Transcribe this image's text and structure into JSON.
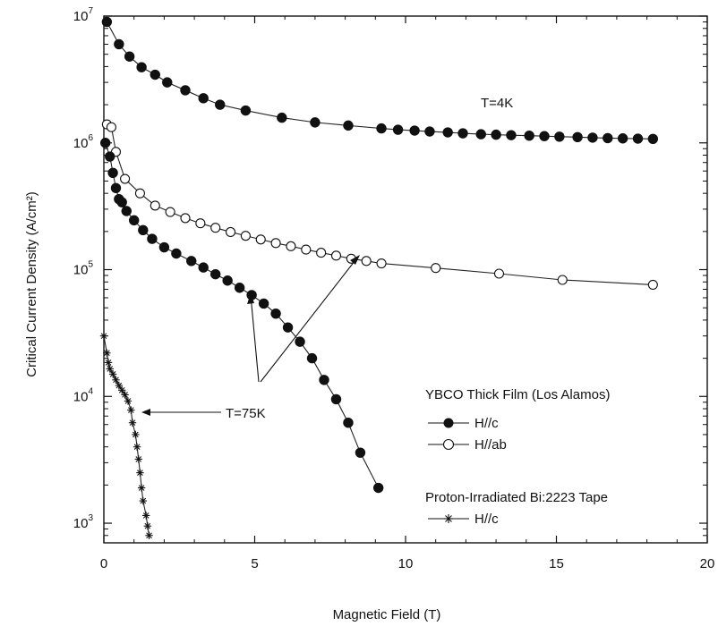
{
  "chart_data": {
    "type": "scatter",
    "xlabel": "Magnetic Field (T)",
    "ylabel": "Critical Current Density (A/cm²)",
    "xlim": [
      0,
      20
    ],
    "ylim": [
      700,
      10000000
    ],
    "y_scale": "log",
    "x_ticks": [
      "0",
      "5",
      "10",
      "15",
      "20"
    ],
    "y_ticks": [
      {
        "value": 1000,
        "exp": "3"
      },
      {
        "value": 10000,
        "exp": "4"
      },
      {
        "value": 100000,
        "exp": "5"
      },
      {
        "value": 1000000,
        "exp": "6"
      },
      {
        "value": 10000000,
        "exp": "7"
      }
    ],
    "y_tick_base": "10",
    "series": [
      {
        "label": "T=4K",
        "marker": "filled-circle",
        "x": [
          0.1,
          0.5,
          0.85,
          1.25,
          1.7,
          2.1,
          2.7,
          3.3,
          3.85,
          4.7,
          5.9,
          7.0,
          8.1,
          9.2,
          9.75,
          10.3,
          10.8,
          11.4,
          11.9,
          12.5,
          13.0,
          13.5,
          14.1,
          14.6,
          15.1,
          15.7,
          16.2,
          16.7,
          17.2,
          17.7,
          18.2
        ],
        "y": [
          9000000,
          6000000,
          4800000,
          3950000,
          3450000,
          3000000,
          2600000,
          2250000,
          2000000,
          1800000,
          1580000,
          1450000,
          1370000,
          1300000,
          1270000,
          1250000,
          1230000,
          1210000,
          1190000,
          1170000,
          1160000,
          1150000,
          1140000,
          1130000,
          1120000,
          1110000,
          1100000,
          1090000,
          1085000,
          1080000,
          1075000
        ]
      },
      {
        "label": "H//ab",
        "marker": "open-circle",
        "x": [
          0.1,
          0.25,
          0.4,
          0.7,
          1.2,
          1.7,
          2.2,
          2.7,
          3.2,
          3.7,
          4.2,
          4.7,
          5.2,
          5.7,
          6.2,
          6.7,
          7.2,
          7.7,
          8.2,
          8.7,
          9.2,
          11.0,
          13.1,
          15.2,
          18.2
        ],
        "y": [
          1400000,
          1330000,
          850000,
          520000,
          400000,
          320000,
          285000,
          255000,
          232000,
          214000,
          198000,
          185000,
          173000,
          162000,
          153000,
          144000,
          136000,
          129000,
          122000,
          117000,
          112000,
          103000,
          93000,
          83000,
          76000
        ]
      },
      {
        "label": "H//c",
        "marker": "filled-circle",
        "x": [
          0.05,
          0.2,
          0.3,
          0.4,
          0.5,
          0.6,
          0.75,
          1.0,
          1.3,
          1.6,
          2.0,
          2.4,
          2.9,
          3.3,
          3.7,
          4.1,
          4.5,
          4.9,
          5.3,
          5.7,
          6.1,
          6.5,
          6.9,
          7.3,
          7.7,
          8.1,
          8.5,
          9.1
        ],
        "y": [
          1000000,
          780000,
          580000,
          440000,
          360000,
          340000,
          290000,
          245000,
          205000,
          175000,
          150000,
          134000,
          117000,
          104000,
          92000,
          82000,
          72000,
          63000,
          54000,
          45000,
          35000,
          27000,
          20000,
          13500,
          9500,
          6200,
          3600,
          1900
        ]
      },
      {
        "label": "Bi:2223 H//c",
        "marker": "star",
        "x": [
          0.0,
          0.1,
          0.15,
          0.2,
          0.3,
          0.4,
          0.5,
          0.6,
          0.7,
          0.8,
          0.9,
          0.95,
          1.05,
          1.1,
          1.15,
          1.2,
          1.25,
          1.3,
          1.4,
          1.45,
          1.5
        ],
        "y": [
          30000,
          22000,
          18500,
          16500,
          15000,
          13500,
          12200,
          11200,
          10300,
          9200,
          7800,
          6200,
          5000,
          4000,
          3200,
          2500,
          1900,
          1500,
          1150,
          950,
          800
        ]
      }
    ],
    "annotations": {
      "t4k": "T=4K",
      "t75k": "T=75K",
      "legend_title_1": "YBCO Thick Film (Los Alamos)",
      "legend_hc": "H//c",
      "legend_hab": "H//ab",
      "legend_title_2": "Proton-Irradiated Bi:2223 Tape",
      "legend_bi_hc": "H//c"
    },
    "grid": false,
    "legend": "bottom-right"
  }
}
